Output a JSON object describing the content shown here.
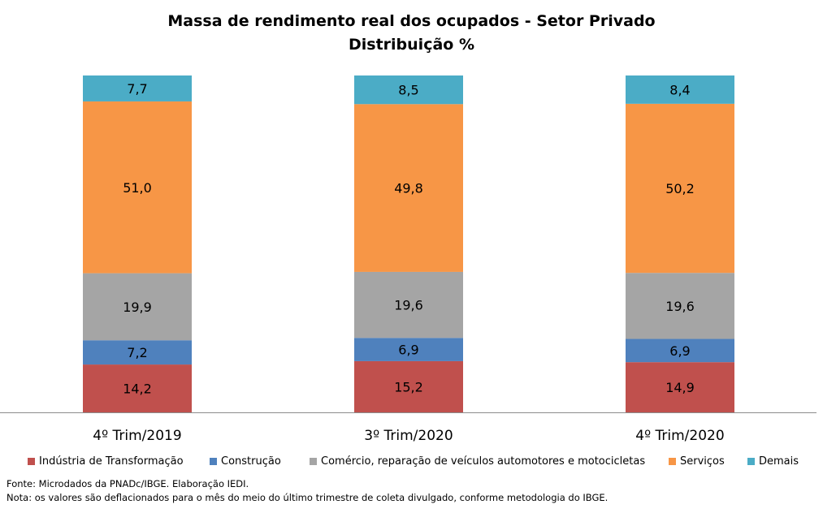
{
  "chart_data": {
    "type": "bar",
    "stacked": true,
    "title": "Massa de rendimento real dos ocupados - Setor Privado",
    "subtitle": "Distribuição %",
    "categories": [
      "4º Trim/2019",
      "3º Trim/2020",
      "4º Trim/2020"
    ],
    "series": [
      {
        "name": "Indústria de Transformação",
        "color": "#c0504d",
        "values": [
          14.2,
          15.2,
          14.9
        ],
        "labels": [
          "14,2",
          "15,2",
          "14,9"
        ]
      },
      {
        "name": "Construção",
        "color": "#4f81bd",
        "values": [
          7.2,
          6.9,
          6.9
        ],
        "labels": [
          "7,2",
          "6,9",
          "6,9"
        ]
      },
      {
        "name": "Comércio, reparação de veículos automotores e motocicletas",
        "color": "#a5a5a5",
        "values": [
          19.9,
          19.6,
          19.6
        ],
        "labels": [
          "19,9",
          "19,6",
          "19,6"
        ]
      },
      {
        "name": "Serviços",
        "color": "#f79646",
        "values": [
          51.0,
          49.8,
          50.2
        ],
        "labels": [
          "51,0",
          "49,8",
          "50,2"
        ]
      },
      {
        "name": "Demais",
        "color": "#4bacc6",
        "values": [
          7.7,
          8.5,
          8.4
        ],
        "labels": [
          "7,7",
          "8,5",
          "8,4"
        ]
      }
    ],
    "ylim": [
      0,
      100
    ],
    "grid": false,
    "legend_position": "bottom"
  },
  "notes": {
    "source": "Fonte: Microdados da PNADc/IBGE. Elaboração IEDI.",
    "note": "Nota: os valores são deflacionados para o mês do meio do último trimestre de coleta divulgado, conforme metodologia do IBGE."
  }
}
